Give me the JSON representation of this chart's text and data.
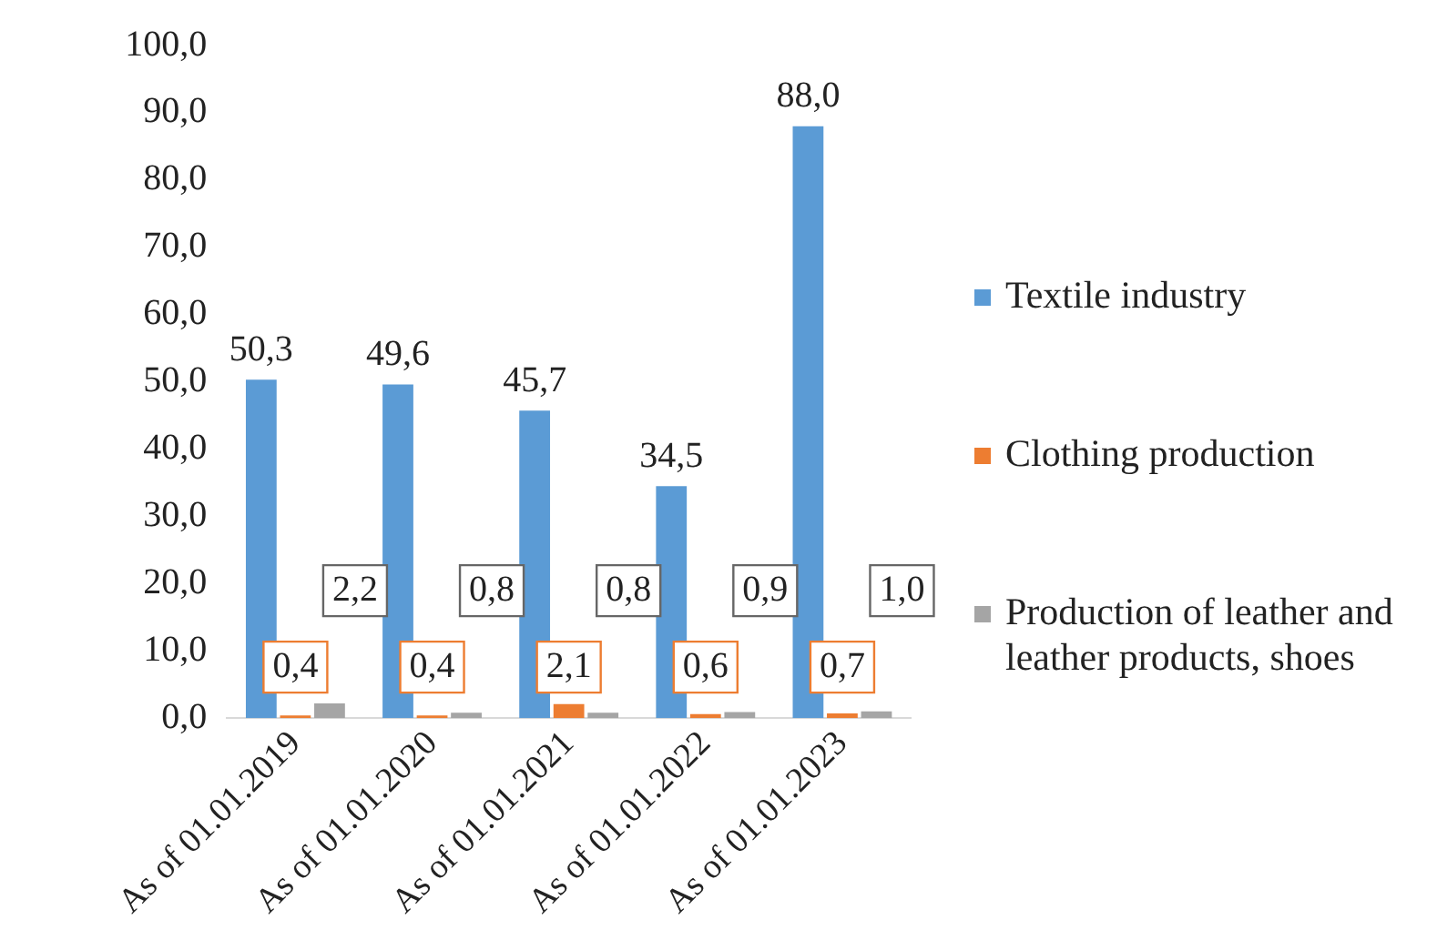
{
  "chart_data": {
    "type": "bar",
    "categories": [
      "As of 01.01.2019",
      "As of 01.01.2020",
      "As of 01.01.2021",
      "As of 01.01.2022",
      "As of 01.01.2023"
    ],
    "series": [
      {
        "name": "Textile industry",
        "color": "#5b9bd5",
        "values": [
          50.3,
          49.6,
          45.7,
          34.5,
          88.0
        ],
        "value_labels": [
          "50,3",
          "49,6",
          "45,7",
          "34,5",
          "88,0"
        ]
      },
      {
        "name": "Clothing production",
        "color": "#ed7d31",
        "values": [
          0.4,
          0.4,
          2.1,
          0.6,
          0.7
        ],
        "value_labels": [
          "0,4",
          "0,4",
          "2,1",
          "0,6",
          "0,7"
        ]
      },
      {
        "name": "Production of leather and leather products, shoes",
        "color": "#a5a5a5",
        "values": [
          2.2,
          0.8,
          0.8,
          0.9,
          1.0
        ],
        "value_labels": [
          "2,2",
          "0,8",
          "0,8",
          "0,9",
          "1,0"
        ]
      }
    ],
    "ylim": [
      0,
      100
    ],
    "yticks": [
      {
        "value": 0,
        "label": "0,0"
      },
      {
        "value": 10,
        "label": "10,0"
      },
      {
        "value": 20,
        "label": "20,0"
      },
      {
        "value": 30,
        "label": "30,0"
      },
      {
        "value": 40,
        "label": "40,0"
      },
      {
        "value": 50,
        "label": "50,0"
      },
      {
        "value": 60,
        "label": "60,0"
      },
      {
        "value": 70,
        "label": "70,0"
      },
      {
        "value": 80,
        "label": "80,0"
      },
      {
        "value": 90,
        "label": "90,0"
      },
      {
        "value": 100,
        "label": "100,0"
      }
    ],
    "grid": false,
    "legend": "right"
  }
}
